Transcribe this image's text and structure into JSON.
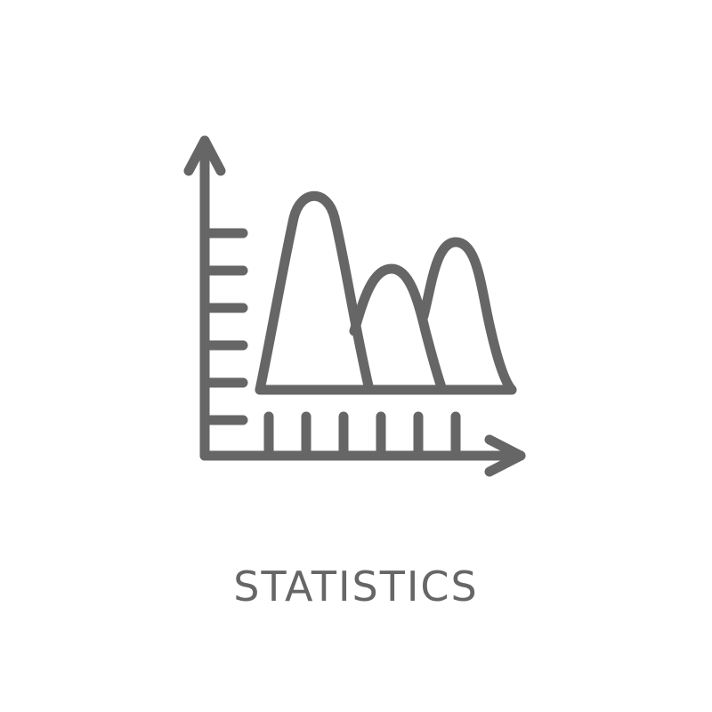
{
  "caption": "STATISTICS",
  "colors": {
    "stroke": "#666666",
    "caption": "#666666",
    "background": "#ffffff"
  },
  "icon": {
    "name": "statistics-chart-icon"
  }
}
